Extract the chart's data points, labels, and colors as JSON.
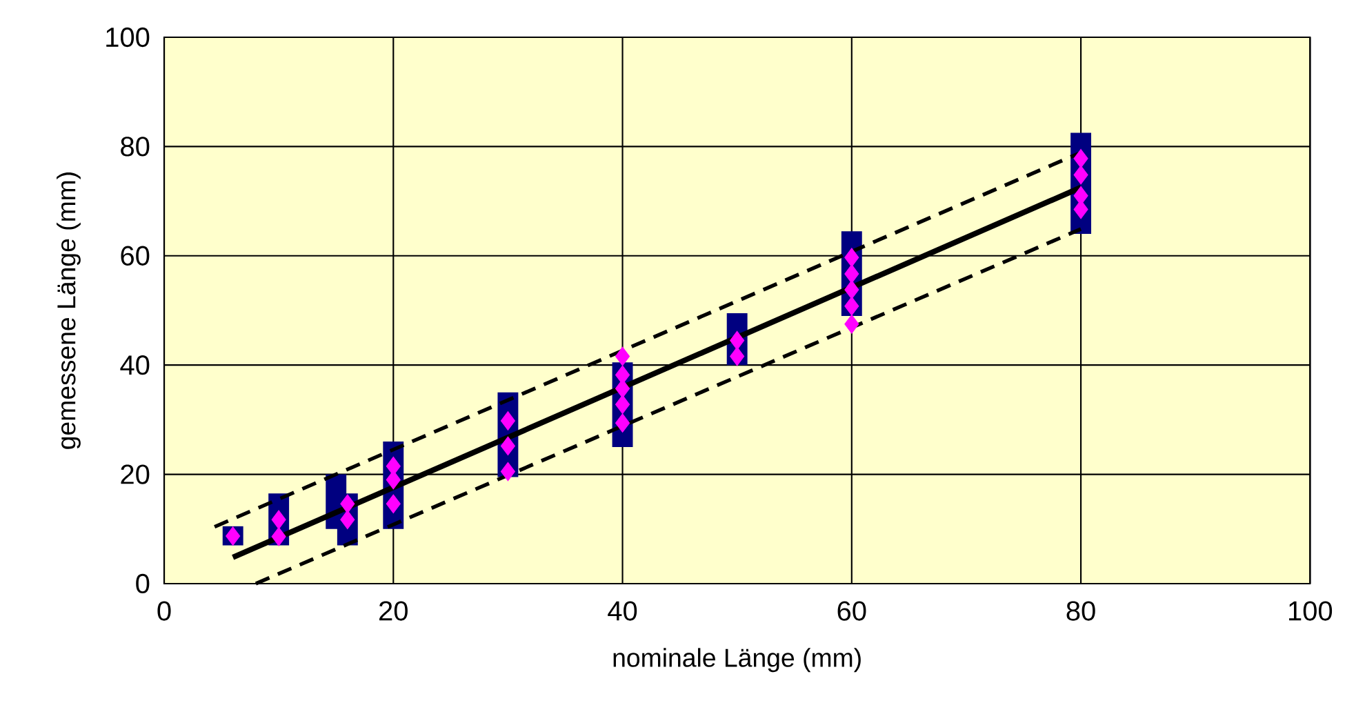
{
  "chart_data": {
    "type": "bar",
    "xlabel": "nominale Länge (mm)",
    "ylabel": "gemessene Länge (mm)",
    "xlim": [
      0,
      100
    ],
    "ylim": [
      0,
      100
    ],
    "xticks": [
      0,
      20,
      40,
      60,
      80,
      100
    ],
    "yticks": [
      0,
      20,
      40,
      60,
      80,
      100
    ],
    "grid": true,
    "series": [
      {
        "color": "#000080",
        "x": [
          6,
          10,
          15,
          16,
          20,
          30,
          40,
          50,
          60,
          80
        ],
        "base": [
          7,
          7,
          10,
          7,
          10,
          19.5,
          25,
          40,
          49,
          64
        ],
        "values": [
          3.5,
          9.5,
          10,
          9.5,
          16,
          15.5,
          15.5,
          9.5,
          15.5,
          18.5
        ]
      },
      {
        "type": "scatter",
        "color": "#ff00ff",
        "marker": "diamond",
        "x": [
          6,
          10,
          10,
          16,
          16,
          20,
          20,
          20,
          30,
          30,
          30,
          40,
          40,
          40,
          40,
          40,
          50,
          50,
          60,
          60,
          60,
          60,
          60,
          80,
          80,
          80,
          80
        ],
        "values": [
          8.7,
          8.6,
          11.7,
          11.7,
          14.6,
          14.6,
          19,
          21.5,
          20.5,
          25.2,
          29.8,
          29.4,
          32.8,
          35.7,
          38.2,
          41.6,
          41.6,
          44.5,
          47.5,
          50.8,
          53.8,
          56.7,
          59.7,
          68.5,
          71,
          74.8,
          77.8
        ]
      },
      {
        "type": "line",
        "color": "#000000",
        "line_style": "solid",
        "x": [
          6,
          80
        ],
        "values": [
          4.8,
          72.5
        ]
      },
      {
        "type": "line",
        "color": "#000000",
        "line_style": "dashed",
        "x": [
          4.4,
          80
        ],
        "values": [
          10.4,
          78.9
        ]
      },
      {
        "type": "line",
        "color": "#000000",
        "line_style": "dashed",
        "x": [
          8,
          80
        ],
        "values": [
          0,
          64.9
        ]
      }
    ]
  }
}
